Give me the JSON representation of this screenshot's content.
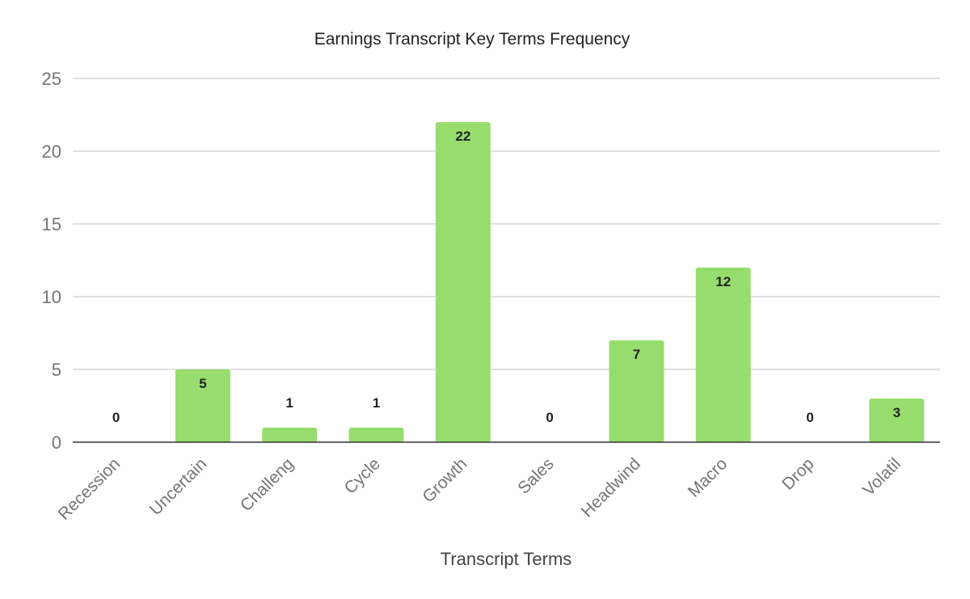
{
  "chart_data": {
    "type": "bar",
    "title": "Earnings Transcript Key Terms Frequency",
    "xlabel": "Transcript Terms",
    "ylabel": "",
    "categories": [
      "Recession",
      "Uncertain",
      "Challeng",
      "Cycle",
      "Growth",
      "Sales",
      "Headwind",
      "Macro",
      "Drop",
      "Volatil"
    ],
    "values": [
      0,
      5,
      1,
      1,
      22,
      0,
      7,
      12,
      0,
      3
    ],
    "ylim": [
      0,
      25
    ],
    "yticks": [
      0,
      5,
      10,
      15,
      20,
      25
    ],
    "grid": true,
    "legend": "none",
    "bar_color": "#97dd6d"
  }
}
